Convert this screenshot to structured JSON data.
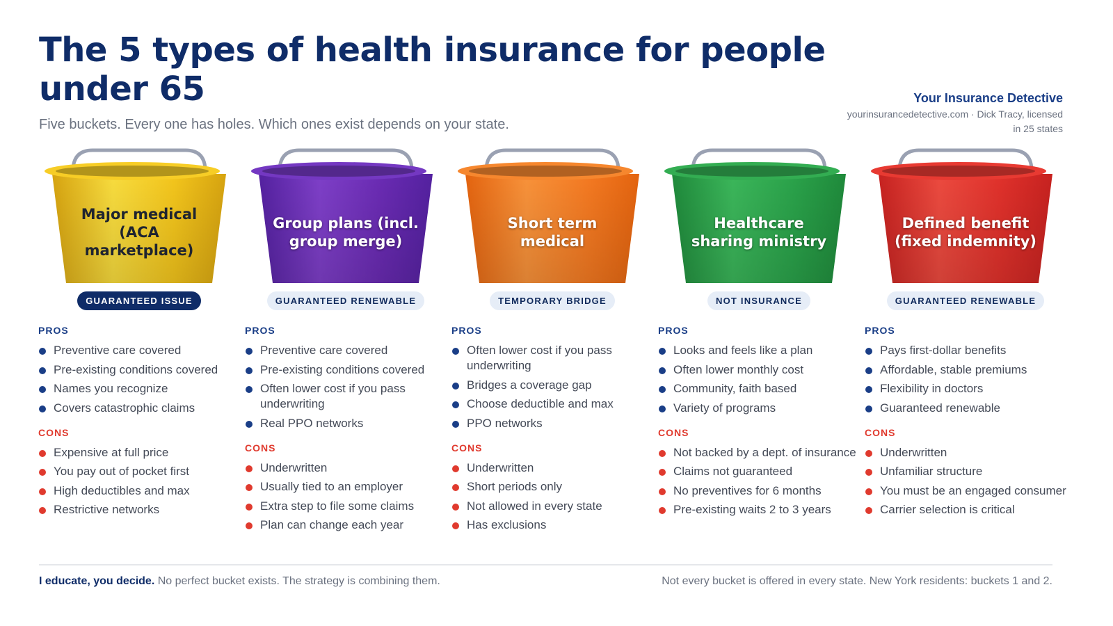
{
  "header": {
    "title": "The 5 types of health insurance for people under 65",
    "subtitle": "Five buckets. Every one has holes. Which ones exist depends on your state.",
    "brand_name": "Your Insurance Detective",
    "brand_meta_line1": "yourinsurancedetective.com · Dick Tracy, licensed",
    "brand_meta_line2": "in 25 states"
  },
  "labels": {
    "pros": "PROS",
    "cons": "CONS"
  },
  "buckets": [
    {
      "name": "Major medical (ACA marketplace)",
      "badge": "GUARANTEED ISSUE",
      "color_main": "#f3c51c",
      "color_light": "#f8dc3e",
      "color_dark": "#d7a410",
      "rim_color": "#f7cd26",
      "pros": [
        "Preventive care covered",
        "Pre-existing conditions covered",
        "Names you recognize",
        "Covers catastrophic claims"
      ],
      "cons": [
        "Expensive at full price",
        "You pay out of pocket first",
        "High deductibles and max",
        "Restrictive networks"
      ]
    },
    {
      "name": "Group plans (incl. group merge)",
      "badge": "GUARANTEED RENEWABLE",
      "color_main": "#6a2bb3",
      "color_light": "#7e3fc8",
      "color_dark": "#5421a0",
      "rim_color": "#7438c2",
      "pros": [
        "Preventive care covered",
        "Pre-existing conditions covered",
        "Often lower cost if you pass underwriting",
        "Real PPO networks"
      ],
      "cons": [
        "Underwritten",
        "Usually tied to an employer",
        "Extra step to file some claims",
        "Plan can change each year"
      ]
    },
    {
      "name": "Short term medical",
      "badge": "TEMPORARY BRIDGE",
      "color_main": "#f47a22",
      "color_light": "#f8923a",
      "color_dark": "#e4640f",
      "rim_color": "#f6872e",
      "pros": [
        "Often lower cost if you pass underwriting",
        "Bridges a coverage gap",
        "Choose deductible and max",
        "PPO networks"
      ],
      "cons": [
        "Underwritten",
        "Short periods only",
        "Not allowed in every state",
        "Has exclusions"
      ]
    },
    {
      "name": "Healthcare sharing ministry",
      "badge": "NOT INSURANCE",
      "color_main": "#2aa24a",
      "color_light": "#3bb65a",
      "color_dark": "#1f8a3b",
      "rim_color": "#33ad52",
      "pros": [
        "Looks and feels like a plan",
        "Often lower monthly cost",
        "Community, faith based",
        "Variety of programs"
      ],
      "cons": [
        "Not backed by a dept. of insurance",
        "Claims not guaranteed",
        "No preventives for 6 months",
        "Pre-existing waits 2 to 3 years"
      ]
    },
    {
      "name": "Defined benefit (fixed indemnity)",
      "badge": "GUARANTEED RENEWABLE",
      "color_main": "#e0312b",
      "color_light": "#ec4a3f",
      "color_dark": "#c72220",
      "rim_color": "#e83a32",
      "pros": [
        "Pays first-dollar benefits",
        "Affordable, stable premiums",
        "Flexibility in doctors",
        "Guaranteed renewable"
      ],
      "cons": [
        "Underwritten",
        "Unfamiliar structure",
        "You must be an engaged consumer",
        "Carrier selection is critical"
      ]
    }
  ],
  "footer": {
    "left_bold": "I educate, you decide.",
    "left_text": " No perfect bucket exists. The strategy is combining them.",
    "right_text": "Not every bucket is offered in every state. New York residents: buckets 1 and 2."
  }
}
